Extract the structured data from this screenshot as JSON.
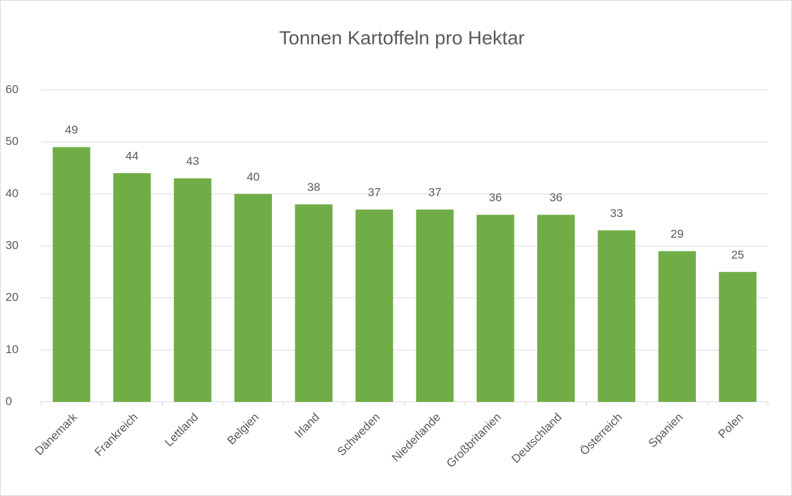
{
  "chart_data": {
    "type": "bar",
    "title": "Tonnen Kartoffeln pro Hektar",
    "categories": [
      "Dänemark",
      "Frankreich",
      "Lettland",
      "Belgien",
      "Irland",
      "Schweden",
      "Niederlande",
      "Großbritanien",
      "Deutschland",
      "Österreich",
      "Spanien",
      "Polen"
    ],
    "values": [
      49,
      44,
      43,
      40,
      38,
      37,
      37,
      36,
      36,
      33,
      29,
      25
    ],
    "color": "#70ad47",
    "ylim": [
      0,
      60
    ],
    "yticks": [
      0,
      10,
      20,
      30,
      40,
      50,
      60
    ],
    "grid": true
  }
}
